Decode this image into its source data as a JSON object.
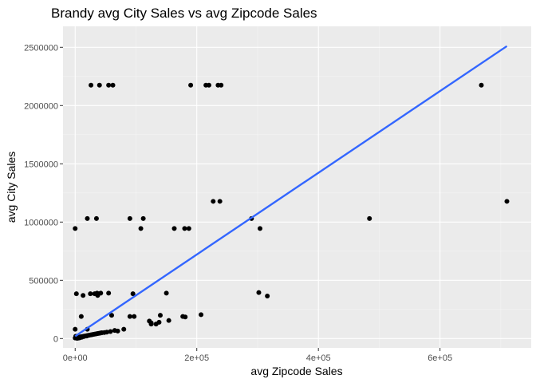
{
  "chart_data": {
    "type": "scatter",
    "title": "Brandy avg City Sales vs avg Zipcode Sales",
    "xlabel": "avg Zipcode Sales",
    "ylabel": "avg City Sales",
    "xlim": [
      -20000,
      750000
    ],
    "ylim": [
      -80000,
      2680000
    ],
    "x_ticks": [
      0,
      200000,
      400000,
      600000
    ],
    "x_tick_labels": [
      "0e+00",
      "2e+05",
      "4e+05",
      "6e+05"
    ],
    "y_ticks": [
      0,
      500000,
      1000000,
      1500000,
      2000000,
      2500000
    ],
    "y_tick_labels": [
      "0",
      "500000",
      "1000000",
      "1500000",
      "2000000",
      "2500000"
    ],
    "grid": true,
    "background": "#ebebeb",
    "point_color": "#000000",
    "fit_line_color": "#3366ff",
    "fit_line": {
      "x": [
        0,
        710000
      ],
      "y": [
        20000,
        2510000
      ]
    },
    "points": [
      [
        26000,
        2175000
      ],
      [
        40000,
        2175000
      ],
      [
        55000,
        2175000
      ],
      [
        62000,
        2175000
      ],
      [
        190000,
        2175000
      ],
      [
        215000,
        2175000
      ],
      [
        220000,
        2175000
      ],
      [
        235000,
        2175000
      ],
      [
        240000,
        2175000
      ],
      [
        668000,
        2175000
      ],
      [
        227000,
        1178000
      ],
      [
        238000,
        1178000
      ],
      [
        710000,
        1178000
      ],
      [
        20000,
        1030000
      ],
      [
        35000,
        1030000
      ],
      [
        90000,
        1030000
      ],
      [
        112000,
        1030000
      ],
      [
        290000,
        1030000
      ],
      [
        484000,
        1030000
      ],
      [
        0,
        945000
      ],
      [
        108000,
        945000
      ],
      [
        163000,
        945000
      ],
      [
        180000,
        945000
      ],
      [
        187000,
        945000
      ],
      [
        304000,
        945000
      ],
      [
        2000,
        385000
      ],
      [
        25000,
        385000
      ],
      [
        32000,
        385000
      ],
      [
        36000,
        390000
      ],
      [
        42000,
        390000
      ],
      [
        55000,
        390000
      ],
      [
        95000,
        385000
      ],
      [
        150000,
        390000
      ],
      [
        302000,
        395000
      ],
      [
        316000,
        365000
      ],
      [
        13000,
        370000
      ],
      [
        37000,
        370000
      ],
      [
        10000,
        190000
      ],
      [
        60000,
        200000
      ],
      [
        90000,
        190000
      ],
      [
        97000,
        190000
      ],
      [
        140000,
        200000
      ],
      [
        177000,
        190000
      ],
      [
        181000,
        185000
      ],
      [
        207000,
        205000
      ],
      [
        122000,
        150000
      ],
      [
        125000,
        135000
      ],
      [
        133000,
        125000
      ],
      [
        138000,
        140000
      ],
      [
        154000,
        155000
      ],
      [
        125000,
        125000
      ],
      [
        0,
        80000
      ],
      [
        20000,
        80000
      ],
      [
        58000,
        60000
      ],
      [
        65000,
        70000
      ],
      [
        70000,
        65000
      ],
      [
        80000,
        80000
      ],
      [
        0,
        5000
      ],
      [
        2000,
        8000
      ],
      [
        4000,
        10000
      ],
      [
        6000,
        12000
      ],
      [
        8000,
        14000
      ],
      [
        10000,
        16000
      ],
      [
        12000,
        18000
      ],
      [
        14000,
        20000
      ],
      [
        16000,
        22000
      ],
      [
        18000,
        24000
      ],
      [
        20000,
        26000
      ],
      [
        22000,
        28000
      ],
      [
        24000,
        30000
      ],
      [
        26000,
        32000
      ],
      [
        28000,
        34000
      ],
      [
        30000,
        36000
      ],
      [
        32000,
        38000
      ],
      [
        34000,
        40000
      ],
      [
        36000,
        42000
      ],
      [
        38000,
        44000
      ],
      [
        40000,
        46000
      ],
      [
        42000,
        48000
      ],
      [
        44000,
        50000
      ],
      [
        48000,
        52000
      ],
      [
        52000,
        55000
      ],
      [
        1000,
        20000
      ],
      [
        3000,
        2000
      ],
      [
        5000,
        4000
      ],
      [
        7000,
        6000
      ],
      [
        9000,
        10000
      ],
      [
        11000,
        12000
      ],
      [
        15000,
        18000
      ],
      [
        19000,
        22000
      ]
    ]
  }
}
